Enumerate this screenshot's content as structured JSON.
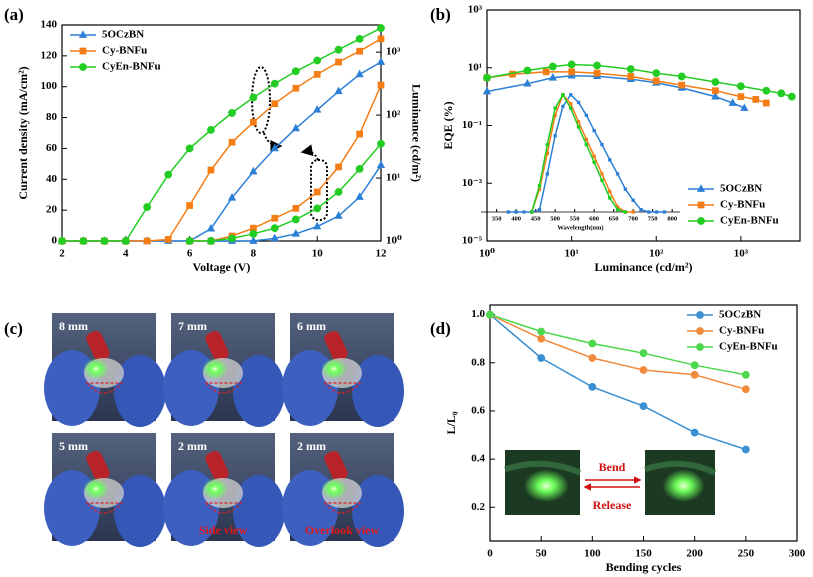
{
  "chart_data": [
    {
      "type": "line",
      "panel_label": "(a)",
      "x_label": "Voltage (V)",
      "y_label": "Current density (mA/cm²)",
      "y2_label": "Luminance (cd/m²)",
      "xlim": [
        2,
        12
      ],
      "xticks": [
        2,
        4,
        6,
        8,
        10,
        12
      ],
      "ylim": [
        0,
        140
      ],
      "yticks": [
        0,
        20,
        40,
        60,
        80,
        100,
        120,
        140
      ],
      "y2lim": [
        1,
        2700
      ],
      "y2_log": true,
      "y2ticks": [
        {
          "value": 1,
          "label": "10⁰"
        },
        {
          "value": 10,
          "label": "10¹"
        },
        {
          "value": 100,
          "label": "10²"
        },
        {
          "value": 1000,
          "label": "10³"
        }
      ],
      "legend": "upper left",
      "x": [
        2,
        2.67,
        3.33,
        4,
        4.67,
        5.33,
        6,
        6.67,
        7.33,
        8,
        8.67,
        9.33,
        10,
        10.67,
        11.33,
        12
      ],
      "series": [
        {
          "name": "5OCzBN",
          "color": "#2b7fd6",
          "marker": "triangle",
          "values": [
            0,
            0,
            0,
            0,
            0,
            0,
            0,
            8,
            28,
            45,
            60,
            73,
            85,
            97,
            108,
            116
          ],
          "y2_values": [
            null,
            null,
            null,
            null,
            null,
            null,
            null,
            1,
            1,
            1,
            1.1,
            1.3,
            1.7,
            2.5,
            5,
            16
          ]
        },
        {
          "name": "Cy-BNFu",
          "color": "#f47d16",
          "marker": "square",
          "values": [
            0,
            0,
            0,
            0,
            0,
            1,
            23,
            46,
            64,
            77,
            89,
            99,
            108,
            116,
            123,
            131
          ],
          "y2_values": [
            null,
            null,
            null,
            null,
            null,
            null,
            1,
            1,
            1.2,
            1.6,
            2.3,
            3.3,
            6,
            15,
            50,
            300
          ]
        },
        {
          "name": "CyEn-BNFu",
          "color": "#22cc22",
          "marker": "circle",
          "values": [
            0,
            0,
            0,
            0,
            22,
            43,
            60,
            72,
            83,
            93,
            102,
            110,
            117,
            124,
            131,
            138
          ],
          "y2_values": [
            null,
            null,
            null,
            null,
            null,
            null,
            1,
            1,
            1.1,
            1.3,
            1.6,
            2.2,
            3.3,
            6,
            14,
            35
          ]
        }
      ]
    },
    {
      "type": "line",
      "panel_label": "(b)",
      "x_label": "Luminance (cd/m²)",
      "y_label": "EQE (%)",
      "xlim": [
        1,
        5000
      ],
      "x_log": true,
      "xticks": [
        {
          "value": 1,
          "label": "10⁰"
        },
        {
          "value": 10,
          "label": "10¹"
        },
        {
          "value": 100,
          "label": "10²"
        },
        {
          "value": 1000,
          "label": "10³"
        }
      ],
      "ylim": [
        1e-05,
        1000
      ],
      "y_log": true,
      "yticks": [
        {
          "value": 1e-05,
          "label": "10⁻⁵"
        },
        {
          "value": 0.001,
          "label": "10⁻³"
        },
        {
          "value": 0.1,
          "label": "10⁻¹"
        },
        {
          "value": 10,
          "label": "10¹"
        },
        {
          "value": 1000,
          "label": "10³"
        }
      ],
      "legend": "lower right",
      "series": [
        {
          "name": "5OCzBN",
          "color": "#2b7fd6",
          "marker": "triangle",
          "x": [
            1,
            3,
            6,
            10,
            20,
            50,
            100,
            200,
            500,
            800,
            1100
          ],
          "values": [
            1.5,
            2.8,
            4.5,
            5.3,
            5.1,
            4,
            3,
            2,
            1,
            0.6,
            0.4
          ]
        },
        {
          "name": "Cy-BNFu",
          "color": "#f47d16",
          "marker": "square",
          "x": [
            1,
            2,
            5,
            10,
            20,
            50,
            100,
            200,
            500,
            1000,
            1500,
            2000
          ],
          "values": [
            4.5,
            6,
            7.2,
            7.2,
            6.5,
            5,
            3.5,
            2.5,
            1.6,
            1,
            0.8,
            0.6
          ]
        },
        {
          "name": "CyEn-BNFu",
          "color": "#22cc22",
          "marker": "circle",
          "x": [
            1,
            3,
            6,
            10,
            20,
            50,
            100,
            200,
            500,
            1000,
            2000,
            3000,
            4000
          ],
          "values": [
            4.5,
            8,
            11,
            13,
            12,
            9,
            6.5,
            5,
            3.2,
            2.3,
            1.6,
            1.3,
            1
          ]
        }
      ],
      "inset": {
        "type": "line",
        "x_label": "Wavelength(nm)",
        "xlim": [
          310,
          820
        ],
        "xticks": [
          350,
          400,
          450,
          500,
          550,
          600,
          650,
          700,
          750,
          800
        ],
        "ylim": [
          0.0001,
          2
        ],
        "y_log": true,
        "x": [
          380,
          400,
          420,
          440,
          460,
          480,
          500,
          520,
          540,
          560,
          580,
          600,
          620,
          640,
          660,
          680,
          700,
          720,
          740,
          760,
          780
        ],
        "series": [
          {
            "color": "#2b7fd6",
            "marker": "square",
            "values": [
              0.0001,
              0.0001,
              0.0001,
              0.0001,
              0.00012,
              0.002,
              0.04,
              0.4,
              1,
              0.55,
              0.2,
              0.06,
              0.02,
              0.006,
              0.002,
              0.0006,
              0.00025,
              0.00012,
              0.0001,
              0.0001,
              0.0001
            ]
          },
          {
            "color": "#f47d16",
            "marker": "square",
            "values": [
              null,
              null,
              null,
              0.0001,
              0.0006,
              0.01,
              0.2,
              1,
              0.5,
              0.12,
              0.03,
              0.008,
              0.002,
              0.0005,
              0.00015,
              0.0001,
              0.0001,
              null,
              null,
              null,
              null
            ]
          },
          {
            "color": "#22cc22",
            "marker": "circle",
            "values": [
              null,
              null,
              null,
              0.0001,
              0.0008,
              0.02,
              0.35,
              1,
              0.35,
              0.08,
              0.02,
              0.005,
              0.0012,
              0.0003,
              0.00012,
              0.0001,
              null,
              null,
              null,
              null,
              null
            ]
          }
        ]
      }
    },
    {
      "type": "line",
      "panel_label": "(d)",
      "x_label": "Bending cycles",
      "y_label": "L/L₀",
      "xlim": [
        0,
        300
      ],
      "xticks": [
        0,
        50,
        100,
        150,
        200,
        250,
        300
      ],
      "ylim": [
        0.06,
        1.04
      ],
      "yticks": [
        0.2,
        0.4,
        0.6,
        0.8,
        {
          "value": 1,
          "label": "1.0"
        }
      ],
      "legend": "upper right",
      "x": [
        0,
        50,
        100,
        150,
        200,
        250
      ],
      "series": [
        {
          "name": "5OCzBN",
          "color": "#3a8fd0",
          "marker": "circle",
          "values": [
            1,
            0.82,
            0.7,
            0.62,
            0.51,
            0.44
          ]
        },
        {
          "name": "Cy-BNFu",
          "color": "#f08a3c",
          "marker": "circle",
          "values": [
            1,
            0.9,
            0.82,
            0.77,
            0.75,
            0.69
          ]
        },
        {
          "name": "CyEn-BNFu",
          "color": "#4cd84c",
          "marker": "circle",
          "values": [
            1,
            0.93,
            0.88,
            0.84,
            0.79,
            0.75
          ]
        }
      ],
      "annotations": [
        "Bend",
        "Release"
      ]
    }
  ],
  "photo_panel": {
    "panel_label": "(c)",
    "photos": [
      {
        "label": "8 mm"
      },
      {
        "label": "7 mm"
      },
      {
        "label": "6 mm"
      },
      {
        "label": "5 mm"
      },
      {
        "label": "2 mm",
        "caption": "Side view"
      },
      {
        "label": "2 mm",
        "caption": "Overlook view"
      }
    ]
  }
}
